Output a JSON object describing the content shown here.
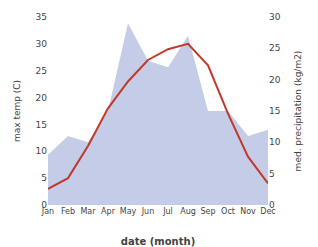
{
  "chart_data": {
    "type": "line",
    "xlabel": "date (month)",
    "ylabel": "max temp (C)",
    "y2label": "med. precipitation (kg/m2)",
    "categories": [
      "Jan",
      "Feb",
      "Mar",
      "Apr",
      "May",
      "Jun",
      "Jul",
      "Aug",
      "Sep",
      "Oct",
      "Nov",
      "Dec"
    ],
    "series": [
      {
        "type": "area",
        "color": "#c5cce8",
        "axis": "y2",
        "values": [
          8,
          11,
          10,
          15,
          29,
          23,
          22,
          27,
          15,
          15,
          11,
          12
        ]
      },
      {
        "type": "line",
        "color": "#c0392b",
        "values": [
          3,
          5,
          11,
          18,
          23,
          27,
          29,
          30,
          26,
          17,
          9,
          4
        ]
      }
    ],
    "ylim": [
      0,
      35
    ],
    "yticks": [
      0,
      5,
      10,
      15,
      20,
      25,
      30,
      35
    ],
    "y2lim": [
      0,
      30
    ],
    "y2ticks": [
      0,
      5,
      10,
      15,
      20,
      25,
      30
    ],
    "grid": false
  }
}
